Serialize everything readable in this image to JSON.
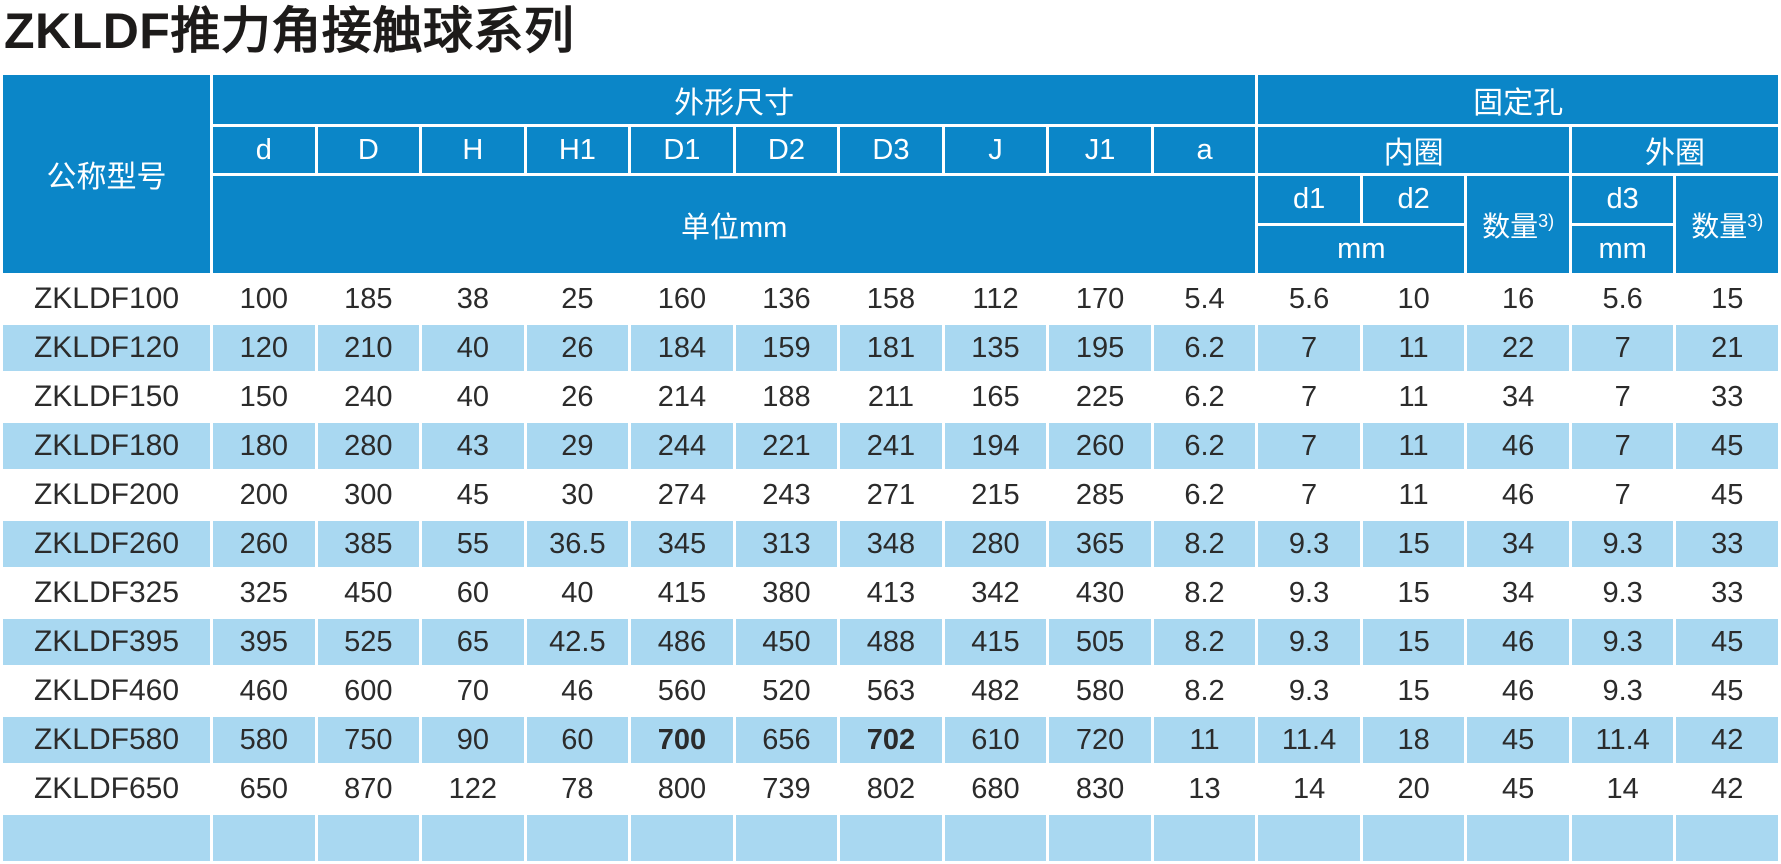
{
  "title": "ZKLDF推力角接触球系列",
  "colors": {
    "header_blue": "#0b86c8",
    "row_blue": "#a9d8f1",
    "body_text": "#2b2b2b",
    "header_text": "#ffffff",
    "title_text": "#1d1b1a"
  },
  "table": {
    "header": {
      "model_col": "公称型号",
      "dims_group": "外形尺寸",
      "holes_group": "固定孔",
      "dim_cols": [
        "d",
        "D",
        "H",
        "H1",
        "D1",
        "D2",
        "D3",
        "J",
        "J1",
        "a"
      ],
      "unit_row": "单位mm",
      "inner_ring": "内圈",
      "outer_ring": "外圈",
      "d1": "d1",
      "d2": "d2",
      "d3": "d3",
      "qty_label": "数量",
      "qty_sup": "3)",
      "mm_inner": "mm",
      "mm_outer": "mm"
    },
    "rows": [
      {
        "model": "ZKLDF100",
        "values": [
          "100",
          "185",
          "38",
          "25",
          "160",
          "136",
          "158",
          "112",
          "170",
          "5.4",
          "5.6",
          "10",
          "16",
          "5.6",
          "15"
        ]
      },
      {
        "model": "ZKLDF120",
        "values": [
          "120",
          "210",
          "40",
          "26",
          "184",
          "159",
          "181",
          "135",
          "195",
          "6.2",
          "7",
          "11",
          "22",
          "7",
          "21"
        ]
      },
      {
        "model": "ZKLDF150",
        "values": [
          "150",
          "240",
          "40",
          "26",
          "214",
          "188",
          "211",
          "165",
          "225",
          "6.2",
          "7",
          "11",
          "34",
          "7",
          "33"
        ]
      },
      {
        "model": "ZKLDF180",
        "values": [
          "180",
          "280",
          "43",
          "29",
          "244",
          "221",
          "241",
          "194",
          "260",
          "6.2",
          "7",
          "11",
          "46",
          "7",
          "45"
        ]
      },
      {
        "model": "ZKLDF200",
        "values": [
          "200",
          "300",
          "45",
          "30",
          "274",
          "243",
          "271",
          "215",
          "285",
          "6.2",
          "7",
          "11",
          "46",
          "7",
          "45"
        ]
      },
      {
        "model": "ZKLDF260",
        "values": [
          "260",
          "385",
          "55",
          "36.5",
          "345",
          "313",
          "348",
          "280",
          "365",
          "8.2",
          "9.3",
          "15",
          "34",
          "9.3",
          "33"
        ]
      },
      {
        "model": "ZKLDF325",
        "values": [
          "325",
          "450",
          "60",
          "40",
          "415",
          "380",
          "413",
          "342",
          "430",
          "8.2",
          "9.3",
          "15",
          "34",
          "9.3",
          "33"
        ]
      },
      {
        "model": "ZKLDF395",
        "values": [
          "395",
          "525",
          "65",
          "42.5",
          "486",
          "450",
          "488",
          "415",
          "505",
          "8.2",
          "9.3",
          "15",
          "46",
          "9.3",
          "45"
        ]
      },
      {
        "model": "ZKLDF460",
        "values": [
          "460",
          "600",
          "70",
          "46",
          "560",
          "520",
          "563",
          "482",
          "580",
          "8.2",
          "9.3",
          "15",
          "46",
          "9.3",
          "45"
        ]
      },
      {
        "model": "ZKLDF580",
        "values": [
          "580",
          "750",
          "90",
          "60",
          "700",
          "656",
          "702",
          "610",
          "720",
          "11",
          "11.4",
          "18",
          "45",
          "11.4",
          "42"
        ],
        "bold_value_indexes": [
          4,
          6
        ]
      },
      {
        "model": "ZKLDF650",
        "values": [
          "650",
          "870",
          "122",
          "78",
          "800",
          "739",
          "802",
          "680",
          "830",
          "13",
          "14",
          "20",
          "45",
          "14",
          "42"
        ]
      },
      {
        "model": "",
        "values": [
          "",
          "",
          "",
          "",
          "",
          "",
          "",
          "",
          "",
          "",
          "",
          "",
          "",
          "",
          ""
        ],
        "partial": true
      }
    ]
  }
}
